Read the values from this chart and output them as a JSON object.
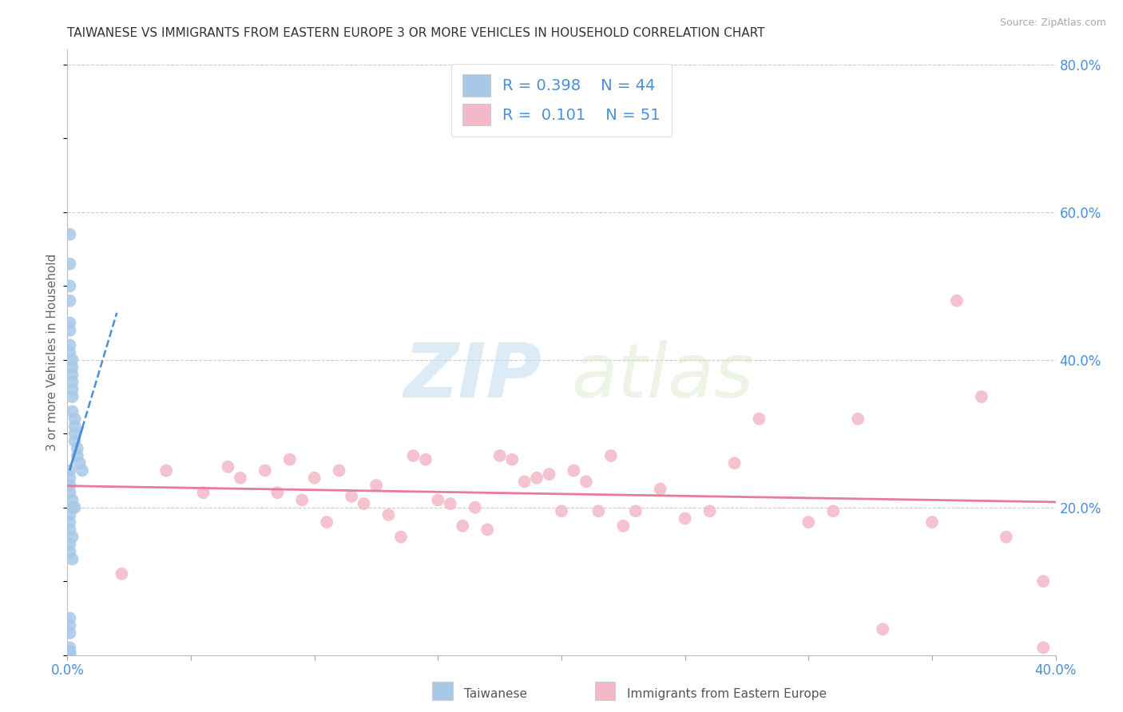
{
  "title": "TAIWANESE VS IMMIGRANTS FROM EASTERN EUROPE 3 OR MORE VEHICLES IN HOUSEHOLD CORRELATION CHART",
  "source": "Source: ZipAtlas.com",
  "ylabel": "3 or more Vehicles in Household",
  "xmin": 0.0,
  "xmax": 0.4,
  "ymin": 0.0,
  "ymax": 0.82,
  "r_taiwanese": 0.398,
  "n_taiwanese": 44,
  "r_eastern_europe": 0.101,
  "n_eastern_europe": 51,
  "color_taiwanese": "#a8c8e8",
  "color_eastern_europe": "#f4b8c8",
  "color_line_taiwanese": "#4a90d9",
  "color_line_eastern_europe": "#e87a9a",
  "color_text_blue": "#4a90d9",
  "taiwanese_x": [
    0.001,
    0.001,
    0.001,
    0.001,
    0.001,
    0.001,
    0.001,
    0.001,
    0.002,
    0.002,
    0.002,
    0.002,
    0.002,
    0.002,
    0.002,
    0.003,
    0.003,
    0.003,
    0.003,
    0.004,
    0.004,
    0.005,
    0.006,
    0.001,
    0.001,
    0.001,
    0.001,
    0.002,
    0.002,
    0.003,
    0.001,
    0.001,
    0.001,
    0.002,
    0.001,
    0.001,
    0.002,
    0.001,
    0.001,
    0.001,
    0.001,
    0.001,
    0.001,
    0.001
  ],
  "taiwanese_y": [
    0.57,
    0.53,
    0.5,
    0.48,
    0.45,
    0.44,
    0.42,
    0.41,
    0.4,
    0.39,
    0.38,
    0.37,
    0.36,
    0.35,
    0.33,
    0.32,
    0.31,
    0.3,
    0.29,
    0.28,
    0.27,
    0.26,
    0.25,
    0.25,
    0.24,
    0.23,
    0.22,
    0.21,
    0.2,
    0.2,
    0.19,
    0.18,
    0.17,
    0.16,
    0.15,
    0.14,
    0.13,
    0.05,
    0.04,
    0.03,
    0.01,
    0.005,
    0.003,
    0.001
  ],
  "eastern_europe_x": [
    0.022,
    0.04,
    0.055,
    0.065,
    0.07,
    0.08,
    0.085,
    0.09,
    0.095,
    0.1,
    0.105,
    0.11,
    0.115,
    0.12,
    0.125,
    0.13,
    0.135,
    0.14,
    0.145,
    0.15,
    0.155,
    0.16,
    0.165,
    0.17,
    0.175,
    0.18,
    0.185,
    0.19,
    0.195,
    0.2,
    0.205,
    0.21,
    0.215,
    0.22,
    0.225,
    0.23,
    0.24,
    0.25,
    0.26,
    0.27,
    0.28,
    0.3,
    0.31,
    0.32,
    0.33,
    0.35,
    0.36,
    0.37,
    0.38,
    0.395,
    0.395
  ],
  "eastern_europe_y": [
    0.11,
    0.25,
    0.22,
    0.255,
    0.24,
    0.25,
    0.22,
    0.265,
    0.21,
    0.24,
    0.18,
    0.25,
    0.215,
    0.205,
    0.23,
    0.19,
    0.16,
    0.27,
    0.265,
    0.21,
    0.205,
    0.175,
    0.2,
    0.17,
    0.27,
    0.265,
    0.235,
    0.24,
    0.245,
    0.195,
    0.25,
    0.235,
    0.195,
    0.27,
    0.175,
    0.195,
    0.225,
    0.185,
    0.195,
    0.26,
    0.32,
    0.18,
    0.195,
    0.32,
    0.035,
    0.18,
    0.48,
    0.35,
    0.16,
    0.1,
    0.01
  ],
  "watermark_zip": "ZIP",
  "watermark_atlas": "atlas",
  "background_color": "#ffffff",
  "grid_color": "#e0e0e0",
  "grid_style": "--"
}
